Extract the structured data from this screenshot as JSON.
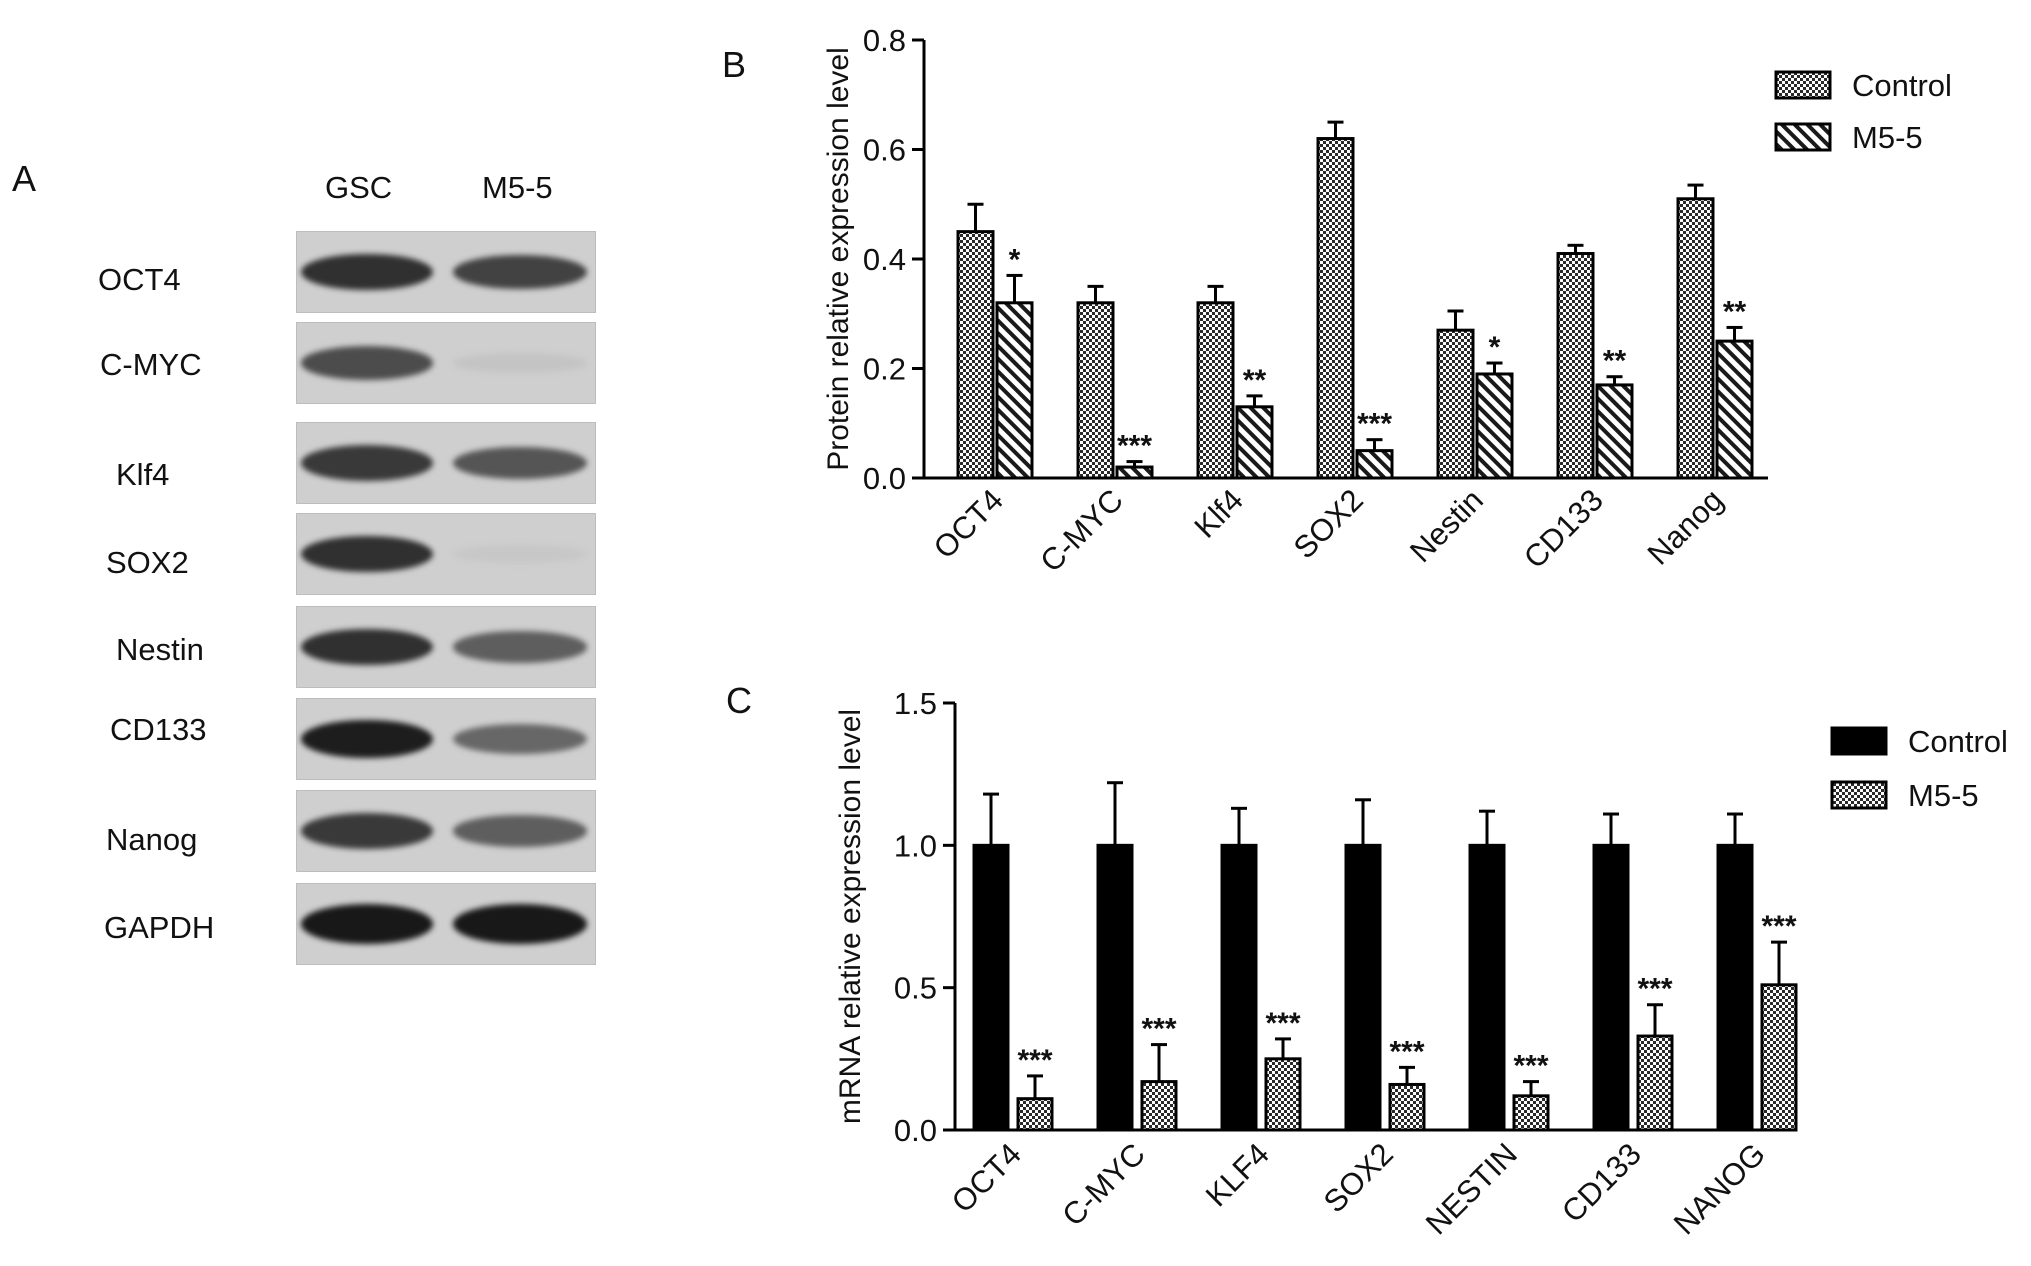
{
  "panels": {
    "a": "A",
    "b": "B",
    "c": "C"
  },
  "western_blot": {
    "lanes": [
      "GSC",
      "M5-5"
    ],
    "proteins": [
      "OCT4",
      "C-MYC",
      "Klf4",
      "SOX2",
      "Nestin",
      "CD133",
      "Nanog",
      "GAPDH"
    ],
    "band_intensity": [
      [
        0.85,
        0.75
      ],
      [
        0.7,
        0.05
      ],
      [
        0.8,
        0.65
      ],
      [
        0.85,
        0.03
      ],
      [
        0.85,
        0.6
      ],
      [
        0.95,
        0.55
      ],
      [
        0.8,
        0.6
      ],
      [
        0.98,
        0.98
      ]
    ]
  },
  "chart_data": [
    {
      "type": "bar",
      "panel": "B",
      "ylabel": "Protein relative expression level",
      "ylim": [
        0,
        0.8
      ],
      "yticks": [
        "0.0",
        "0.2",
        "0.4",
        "0.6",
        "0.8"
      ],
      "categories": [
        "OCT4",
        "C-MYC",
        "Klf4",
        "SOX2",
        "Nestin",
        "CD133",
        "Nanog"
      ],
      "series": [
        {
          "name": "Control",
          "values": [
            0.45,
            0.32,
            0.32,
            0.62,
            0.27,
            0.41,
            0.51
          ],
          "errors": [
            0.05,
            0.03,
            0.03,
            0.03,
            0.035,
            0.015,
            0.025
          ],
          "pattern": "crosshatch"
        },
        {
          "name": "M5-5",
          "values": [
            0.32,
            0.02,
            0.13,
            0.05,
            0.19,
            0.17,
            0.25
          ],
          "errors": [
            0.05,
            0.01,
            0.02,
            0.02,
            0.02,
            0.015,
            0.025
          ],
          "pattern": "diagonal"
        }
      ],
      "significance": [
        "*",
        "***",
        "**",
        "***",
        "*",
        "**",
        "**"
      ],
      "legend_position": "top-right"
    },
    {
      "type": "bar",
      "panel": "C",
      "ylabel": "mRNA relative expression level",
      "ylim": [
        0,
        1.5
      ],
      "yticks": [
        "0.0",
        "0.5",
        "1.0",
        "1.5"
      ],
      "categories": [
        "OCT4",
        "C-MYC",
        "KLF4",
        "SOX2",
        "NESTIN",
        "CD133",
        "NANOG"
      ],
      "series": [
        {
          "name": "Control",
          "values": [
            1.0,
            1.0,
            1.0,
            1.0,
            1.0,
            1.0,
            1.0
          ],
          "errors": [
            0.18,
            0.22,
            0.13,
            0.16,
            0.12,
            0.11,
            0.11
          ],
          "pattern": "solid"
        },
        {
          "name": "M5-5",
          "values": [
            0.11,
            0.17,
            0.25,
            0.16,
            0.12,
            0.33,
            0.51
          ],
          "errors": [
            0.08,
            0.13,
            0.07,
            0.06,
            0.05,
            0.11,
            0.15
          ],
          "pattern": "crosshatch"
        }
      ],
      "significance": [
        "***",
        "***",
        "***",
        "***",
        "***",
        "***",
        "***"
      ],
      "legend_position": "top-right"
    }
  ]
}
